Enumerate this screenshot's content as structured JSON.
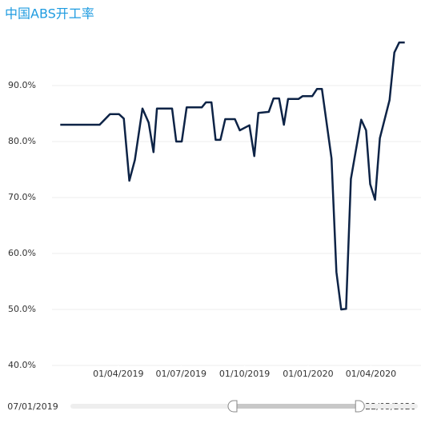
{
  "chart_data": {
    "type": "line",
    "title": "中国ABS开工率",
    "x": [
      "07/01/2019",
      "05/03/2019",
      "20/03/2019",
      "02/04/2019",
      "09/04/2019",
      "17/04/2019",
      "25/04/2019",
      "06/05/2019",
      "15/05/2019",
      "22/05/2019",
      "27/05/2019",
      "18/06/2019",
      "24/06/2019",
      "02/07/2019",
      "09/07/2019",
      "31/07/2019",
      "06/08/2019",
      "14/08/2019",
      "20/08/2019",
      "27/08/2019",
      "03/09/2019",
      "17/09/2019",
      "24/09/2019",
      "08/10/2019",
      "15/10/2019",
      "21/10/2019",
      "05/11/2019",
      "12/11/2019",
      "20/11/2019",
      "27/11/2019",
      "03/12/2019",
      "18/12/2019",
      "24/12/2019",
      "07/01/2020",
      "14/01/2020",
      "21/01/2020",
      "04/02/2020",
      "11/02/2020",
      "18/02/2020",
      "25/02/2020",
      "03/03/2020",
      "18/03/2020",
      "25/03/2020",
      "31/03/2020",
      "07/04/2020",
      "14/04/2020",
      "28/04/2020",
      "05/05/2020",
      "12/05/2020",
      "20/05/2020"
    ],
    "series": [
      {
        "color": "#0d2346",
        "values": [
          83.0,
          83.0,
          84.9,
          84.9,
          84.1,
          73.0,
          76.7,
          85.9,
          83.4,
          78.1,
          85.9,
          85.9,
          80.0,
          80.0,
          86.1,
          86.1,
          87.0,
          87.0,
          80.3,
          80.3,
          84.0,
          84.0,
          82.0,
          82.9,
          77.4,
          85.1,
          85.3,
          87.7,
          87.7,
          83.0,
          87.6,
          87.6,
          88.1,
          88.1,
          89.4,
          89.4,
          77.0,
          56.7,
          50.0,
          50.1,
          73.3,
          83.9,
          82.0,
          72.4,
          69.6,
          80.6,
          87.4,
          95.9,
          97.7,
          97.7
        ]
      }
    ],
    "xlim": [
      "26/12/2018",
      "01/06/2020"
    ],
    "xticks": [
      "01/04/2019",
      "01/07/2019",
      "01/10/2019",
      "01/01/2020",
      "01/04/2020"
    ],
    "ylim": [
      40,
      100
    ],
    "yticks": [
      {
        "value": 40,
        "label": "40.0%"
      },
      {
        "value": 50,
        "label": "50.0%"
      },
      {
        "value": 60,
        "label": "60.0%"
      },
      {
        "value": 70,
        "label": "70.0%"
      },
      {
        "value": 80,
        "label": "80.0%"
      },
      {
        "value": 90,
        "label": "90.0%"
      }
    ],
    "grid": true,
    "zoom": {
      "start_label": "07/01/2019",
      "end_label": "22/05/2020",
      "handles": [
        47,
        83
      ]
    }
  }
}
